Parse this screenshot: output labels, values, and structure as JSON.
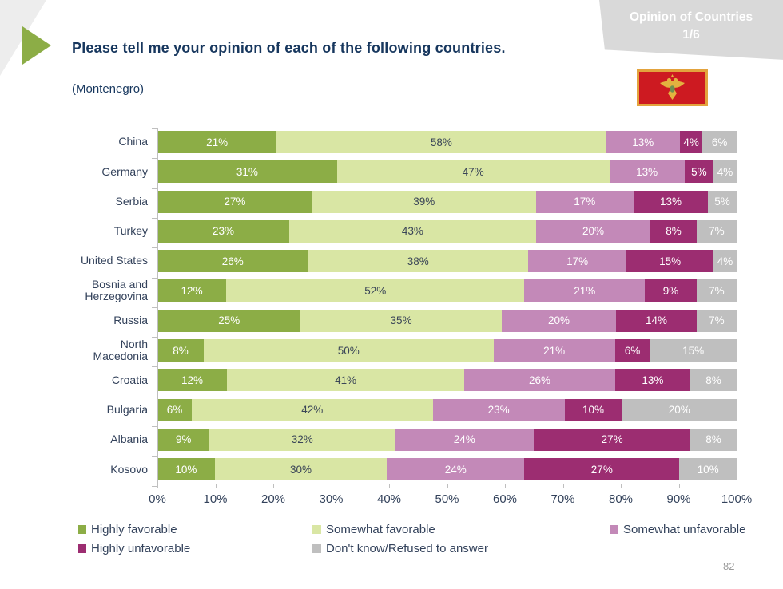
{
  "header": {
    "ribbon_line1": "Opinion of Countries",
    "ribbon_line2": "1/6",
    "title": "Please tell me your opinion of each of the following countries.",
    "subtitle": "(Montenegro)"
  },
  "flag": {
    "country": "Montenegro"
  },
  "page_number": "82",
  "colors": {
    "title_text": "#17375e",
    "ribbon_bg": "#d9d9d9",
    "axis": "#bfbfbf",
    "page_number": "#9a9a9a"
  },
  "chart_data": {
    "type": "bar",
    "stacked": true,
    "orientation": "horizontal",
    "categories": [
      "China",
      "Germany",
      "Serbia",
      "Turkey",
      "United States",
      "Bosnia and Herzegovina",
      "Russia",
      "North Macedonia",
      "Croatia",
      "Bulgaria",
      "Albania",
      "Kosovo"
    ],
    "series": [
      {
        "name": "Highly favorable",
        "color": "#8cad46",
        "text_color": "#ffffff",
        "values": [
          21,
          31,
          27,
          23,
          26,
          12,
          25,
          8,
          12,
          6,
          9,
          10
        ]
      },
      {
        "name": "Somewhat favorable",
        "color": "#d9e6a4",
        "text_color": "#3a4557",
        "values": [
          58,
          47,
          39,
          43,
          38,
          52,
          35,
          50,
          41,
          42,
          32,
          30
        ]
      },
      {
        "name": "Somewhat unfavorable",
        "color": "#c389b8",
        "text_color": "#ffffff",
        "values": [
          13,
          13,
          17,
          20,
          17,
          21,
          20,
          21,
          26,
          23,
          24,
          24
        ]
      },
      {
        "name": "Highly unfavorable",
        "color": "#9c2d71",
        "text_color": "#ffffff",
        "values": [
          4,
          5,
          13,
          8,
          15,
          9,
          14,
          6,
          13,
          10,
          27,
          27
        ]
      },
      {
        "name": "Don't know/Refused to answer",
        "color": "#bfbfbf",
        "text_color": "#ffffff",
        "values": [
          6,
          4,
          5,
          7,
          4,
          7,
          7,
          15,
          8,
          20,
          8,
          10
        ]
      }
    ],
    "value_suffix": "%",
    "xlim": [
      0,
      100
    ],
    "xticks": [
      "0%",
      "10%",
      "20%",
      "30%",
      "40%",
      "50%",
      "60%",
      "70%",
      "80%",
      "90%",
      "100%"
    ],
    "grid": false,
    "legend_position": "bottom"
  }
}
